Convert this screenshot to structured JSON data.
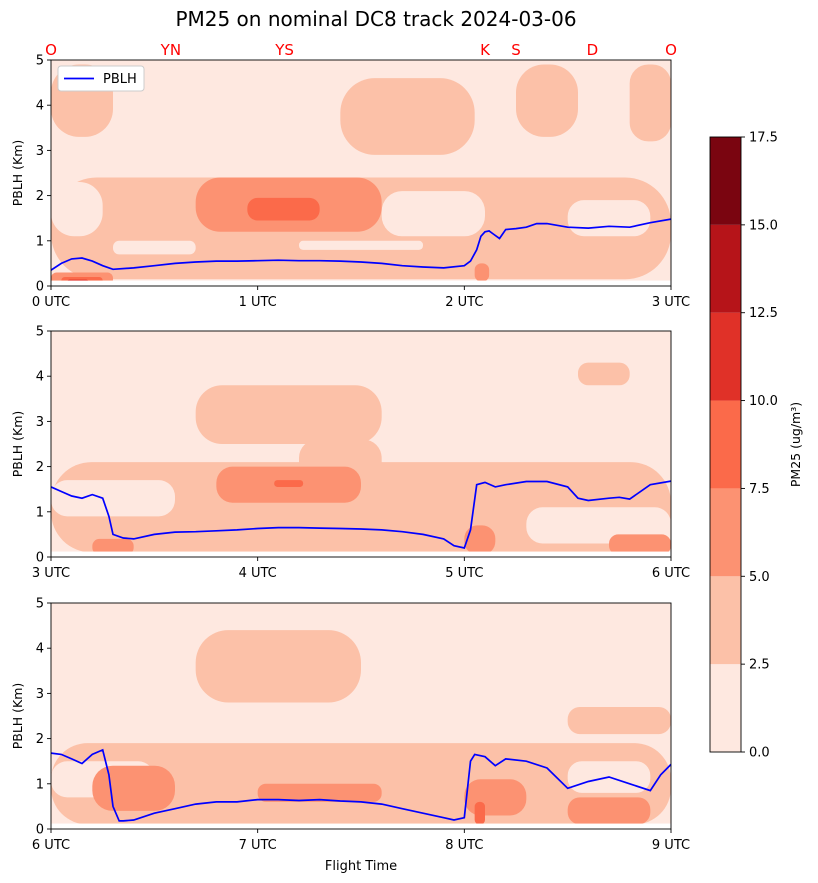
{
  "title": "PM25 on nominal DC8 track 2024-03-06",
  "colors": {
    "pblh_line": "#0000ff",
    "levels": [
      "#fee8e0",
      "#fcc1a8",
      "#fc9272",
      "#fb6a4a",
      "#e03128",
      "#b61419",
      "#7a0510"
    ],
    "waypoint_text": "#ff0000"
  },
  "chart_data": [
    {
      "type": "contour",
      "ylabel": "PBLH (Km)",
      "xlabel": "",
      "ylim": [
        0,
        5
      ],
      "yticks": [
        "0",
        "1",
        "2",
        "3",
        "4",
        "5"
      ],
      "xticks": [
        "0 UTC",
        "1 UTC",
        "2 UTC",
        "3 UTC"
      ],
      "xlim_hours": [
        0,
        3
      ],
      "legend": {
        "label": "PBLH",
        "placement": "upper-left"
      },
      "waypoints": [
        {
          "label": "O",
          "hour": 0.0
        },
        {
          "label": "YN",
          "hour": 0.58
        },
        {
          "label": "YS",
          "hour": 1.13
        },
        {
          "label": "K",
          "hour": 2.1
        },
        {
          "label": "S",
          "hour": 2.25
        },
        {
          "label": "D",
          "hour": 2.62
        },
        {
          "label": "O",
          "hour": 3.0
        }
      ],
      "series": [
        {
          "name": "PBLH",
          "x": [
            0.0,
            0.05,
            0.1,
            0.15,
            0.2,
            0.25,
            0.3,
            0.4,
            0.5,
            0.6,
            0.7,
            0.8,
            0.9,
            1.0,
            1.1,
            1.2,
            1.3,
            1.4,
            1.5,
            1.6,
            1.7,
            1.8,
            1.9,
            2.0,
            2.03,
            2.06,
            2.08,
            2.1,
            2.12,
            2.14,
            2.17,
            2.2,
            2.25,
            2.3,
            2.35,
            2.4,
            2.5,
            2.6,
            2.7,
            2.8,
            2.9,
            3.0
          ],
          "y": [
            0.35,
            0.5,
            0.6,
            0.62,
            0.55,
            0.45,
            0.37,
            0.4,
            0.45,
            0.5,
            0.53,
            0.55,
            0.55,
            0.56,
            0.57,
            0.56,
            0.56,
            0.55,
            0.53,
            0.5,
            0.45,
            0.42,
            0.4,
            0.45,
            0.55,
            0.8,
            1.1,
            1.2,
            1.22,
            1.15,
            1.05,
            1.25,
            1.27,
            1.3,
            1.38,
            1.38,
            1.3,
            1.28,
            1.32,
            1.3,
            1.4,
            1.48
          ]
        }
      ]
    },
    {
      "type": "contour",
      "ylabel": "PBLH (Km)",
      "xlabel": "",
      "ylim": [
        0,
        5
      ],
      "yticks": [
        "0",
        "1",
        "2",
        "3",
        "4",
        "5"
      ],
      "xticks": [
        "3 UTC",
        "4 UTC",
        "5 UTC",
        "6 UTC"
      ],
      "xlim_hours": [
        3,
        6
      ],
      "series": [
        {
          "x": [
            3.0,
            3.05,
            3.1,
            3.15,
            3.2,
            3.25,
            3.28,
            3.3,
            3.35,
            3.4,
            3.5,
            3.6,
            3.7,
            3.8,
            3.9,
            4.0,
            4.1,
            4.2,
            4.3,
            4.4,
            4.5,
            4.6,
            4.7,
            4.8,
            4.9,
            4.95,
            5.0,
            5.03,
            5.06,
            5.1,
            5.15,
            5.2,
            5.3,
            5.4,
            5.5,
            5.55,
            5.6,
            5.7,
            5.75,
            5.8,
            5.9,
            6.0
          ],
          "y": [
            1.55,
            1.45,
            1.35,
            1.3,
            1.38,
            1.3,
            0.9,
            0.5,
            0.42,
            0.4,
            0.5,
            0.55,
            0.56,
            0.58,
            0.6,
            0.63,
            0.65,
            0.65,
            0.64,
            0.63,
            0.62,
            0.6,
            0.56,
            0.5,
            0.4,
            0.25,
            0.2,
            0.6,
            1.6,
            1.65,
            1.55,
            1.6,
            1.67,
            1.67,
            1.55,
            1.3,
            1.25,
            1.3,
            1.32,
            1.28,
            1.6,
            1.68
          ]
        }
      ]
    },
    {
      "type": "contour",
      "ylabel": "PBLH (Km)",
      "xlabel": "Flight Time",
      "ylim": [
        0,
        5
      ],
      "yticks": [
        "0",
        "1",
        "2",
        "3",
        "4",
        "5"
      ],
      "xticks": [
        "6 UTC",
        "7 UTC",
        "8 UTC",
        "9 UTC"
      ],
      "xlim_hours": [
        6,
        9
      ],
      "series": [
        {
          "x": [
            6.0,
            6.05,
            6.1,
            6.15,
            6.2,
            6.25,
            6.28,
            6.3,
            6.33,
            6.35,
            6.4,
            6.5,
            6.6,
            6.7,
            6.8,
            6.9,
            7.0,
            7.1,
            7.2,
            7.3,
            7.4,
            7.5,
            7.6,
            7.7,
            7.8,
            7.9,
            7.95,
            8.0,
            8.03,
            8.05,
            8.1,
            8.15,
            8.2,
            8.3,
            8.4,
            8.5,
            8.6,
            8.7,
            8.8,
            8.9,
            8.95,
            9.0
          ],
          "y": [
            1.68,
            1.65,
            1.55,
            1.45,
            1.65,
            1.75,
            1.2,
            0.5,
            0.18,
            0.18,
            0.2,
            0.35,
            0.45,
            0.55,
            0.6,
            0.6,
            0.65,
            0.65,
            0.63,
            0.65,
            0.62,
            0.6,
            0.55,
            0.45,
            0.35,
            0.25,
            0.2,
            0.25,
            1.5,
            1.65,
            1.6,
            1.4,
            1.55,
            1.5,
            1.35,
            0.9,
            1.05,
            1.15,
            1.0,
            0.85,
            1.2,
            1.43
          ]
        }
      ]
    }
  ],
  "colorbar": {
    "label": "PM25 (ug/m³)",
    "bounds": [
      0.0,
      2.5,
      5.0,
      7.5,
      10.0,
      12.5,
      15.0,
      17.5
    ],
    "tick_labels": [
      "0.0",
      "2.5",
      "5.0",
      "7.5",
      "10.0",
      "12.5",
      "15.0",
      "17.5"
    ]
  }
}
